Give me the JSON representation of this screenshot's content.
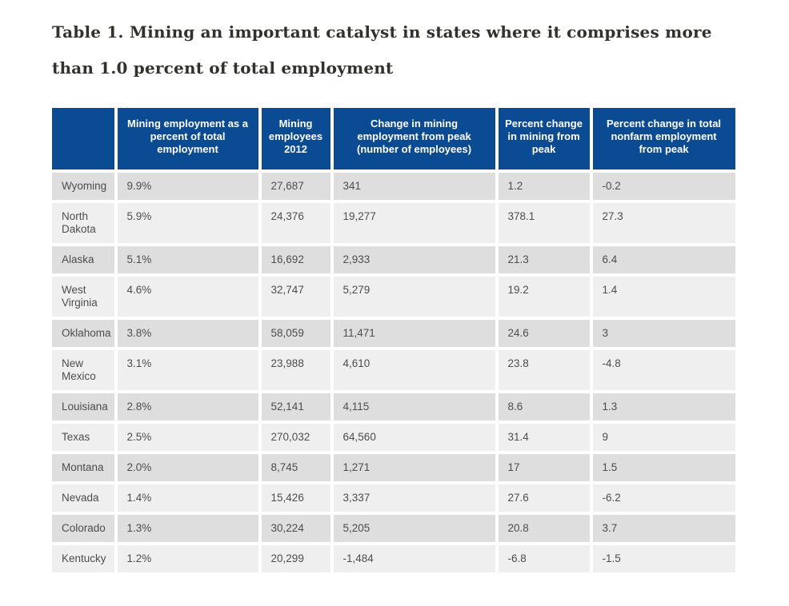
{
  "title": "Table 1. Mining an important catalyst in states where it comprises more than 1.0 percent of total employment",
  "colors": {
    "header_bg": "#0a4b94",
    "row_dark": "#dedede",
    "row_light": "#efefef",
    "cell_text": "#4d4d4d",
    "title_text": "#33312e"
  },
  "chart_data": {
    "type": "table",
    "title": "Table 1. Mining an important catalyst in states where it comprises more than 1.0 percent of total employment",
    "columns": [
      "",
      "Mining employment as a percent of total employment",
      "Mining employees 2012",
      "Change in mining employment from peak (number of employees)",
      "Percent change in mining from peak",
      "Percent change in total nonfarm employment from peak"
    ],
    "rows": [
      [
        "Wyoming",
        "9.9%",
        "27,687",
        "341",
        "1.2",
        "-0.2"
      ],
      [
        "North Dakota",
        "5.9%",
        "24,376",
        "19,277",
        "378.1",
        "27.3"
      ],
      [
        "Alaska",
        "5.1%",
        "16,692",
        "2,933",
        "21.3",
        "6.4"
      ],
      [
        "West Virginia",
        "4.6%",
        "32,747",
        "5,279",
        "19.2",
        "1.4"
      ],
      [
        "Oklahoma",
        "3.8%",
        "58,059",
        "11,471",
        "24.6",
        "3"
      ],
      [
        "New Mexico",
        "3.1%",
        "23,988",
        "4,610",
        "23.8",
        "-4.8"
      ],
      [
        "Louisiana",
        "2.8%",
        "52,141",
        "4,115",
        "8.6",
        "1.3"
      ],
      [
        "Texas",
        "2.5%",
        "270,032",
        "64,560",
        "31.4",
        "9"
      ],
      [
        "Montana",
        "2.0%",
        "8,745",
        "1,271",
        "17",
        "1.5"
      ],
      [
        "Nevada",
        "1.4%",
        "15,426",
        "3,337",
        "27.6",
        "-6.2"
      ],
      [
        "Colorado",
        "1.3%",
        "30,224",
        "5,205",
        "20.8",
        "3.7"
      ],
      [
        "Kentucky",
        "1.2%",
        "20,299",
        "-1,484",
        "-6.8",
        "-1.5"
      ]
    ]
  }
}
